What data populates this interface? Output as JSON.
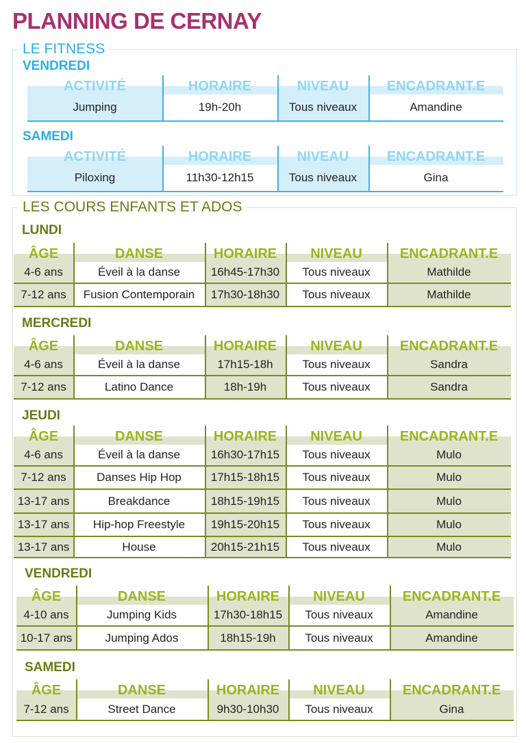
{
  "title": "PLANNING DE CERNAY",
  "colors": {
    "title": "#a8306e",
    "fitness": "#2aaee8",
    "kids": "#6b7a14"
  },
  "fitness": {
    "legend": "LE FITNESS",
    "days": [
      {
        "day": "VENDREDI",
        "headers": [
          "ACTIVITÉ",
          "HORAIRE",
          "NIVEAU",
          "ENCADRANT.E"
        ],
        "rows": [
          [
            "Jumping",
            "19h-20h",
            "Tous niveaux",
            "Amandine"
          ]
        ]
      },
      {
        "day": "SAMEDI",
        "headers": [
          "ACTIVITÉ",
          "HORAIRE",
          "NIVEAU",
          "ENCADRANT.E"
        ],
        "rows": [
          [
            "Piloxing",
            "11h30-12h15",
            "Tous niveaux",
            "Gina"
          ]
        ]
      }
    ]
  },
  "kids": {
    "legend": "LES COURS ENFANTS ET ADOS",
    "days": [
      {
        "day": "LUNDI",
        "headers": [
          "ÂGE",
          "DANSE",
          "HORAIRE",
          "NIVEAU",
          "ENCADRANT.E"
        ],
        "rows": [
          [
            "4-6 ans",
            "Éveil à la danse",
            "16h45-17h30",
            "Tous niveaux",
            "Mathilde"
          ],
          [
            "7-12 ans",
            "Fusion Contemporain",
            "17h30-18h30",
            "Tous niveaux",
            "Mathilde"
          ]
        ]
      },
      {
        "day": "MERCREDI",
        "headers": [
          "ÂGE",
          "DANSE",
          "HORAIRE",
          "NIVEAU",
          "ENCADRANT.E"
        ],
        "rows": [
          [
            "4-6 ans",
            "Éveil à la danse",
            "17h15-18h",
            "Tous niveaux",
            "Sandra"
          ],
          [
            "7-12 ans",
            "Latino Dance",
            "18h-19h",
            "Tous niveaux",
            "Sandra"
          ]
        ]
      },
      {
        "day": "JEUDI",
        "headers": [
          "ÂGE",
          "DANSE",
          "HORAIRE",
          "NIVEAU",
          "ENCADRANT.E"
        ],
        "rows": [
          [
            "4-6 ans",
            "Éveil à la danse",
            "16h30-17h15",
            "Tous niveaux",
            "Mulo"
          ],
          [
            "7-12 ans",
            "Danses Hip Hop",
            "17h15-18h15",
            "Tous niveaux",
            "Mulo"
          ],
          [
            "13-17 ans",
            "Breakdance",
            "18h15-19h15",
            "Tous niveaux",
            "Mulo"
          ],
          [
            "13-17 ans",
            "Hip-hop Freestyle",
            "19h15-20h15",
            "Tous niveaux",
            "Mulo"
          ],
          [
            "13-17 ans",
            "House",
            "20h15-21h15",
            "Tous niveaux",
            "Mulo"
          ]
        ]
      },
      {
        "day": "VENDREDI",
        "headers": [
          "ÂGE",
          "DANSE",
          "HORAIRE",
          "NIVEAU",
          "ENCADRANT.E"
        ],
        "rows": [
          [
            "4-10 ans",
            "Jumping Kids",
            "17h30-18h15",
            "Tous niveaux",
            "Amandine"
          ],
          [
            "10-17 ans",
            "Jumping Ados",
            "18h15-19h",
            "Tous niveaux",
            "Amandine"
          ]
        ]
      },
      {
        "day": "SAMEDI",
        "headers": [
          "ÂGE",
          "DANSE",
          "HORAIRE",
          "NIVEAU",
          "ENCADRANT.E"
        ],
        "rows": [
          [
            "7-12 ans",
            "Street Dance",
            "9h30-10h30",
            "Tous niveaux",
            "Gina"
          ]
        ]
      }
    ]
  }
}
